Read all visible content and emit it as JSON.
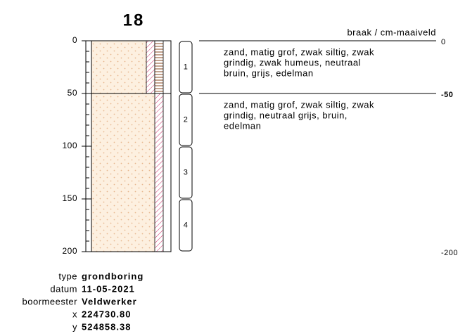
{
  "title": "18",
  "depth_axis": {
    "lim": [
      0,
      200
    ],
    "ticks": [
      0,
      50,
      100,
      150,
      200
    ],
    "minor_step": 10
  },
  "level_header": "braak / cm-maaiveld",
  "level_labels": [
    0,
    -50,
    -200
  ],
  "layers": [
    {
      "top": 0,
      "bottom": 50,
      "description": [
        "zand, matig grof, zwak siltig, zwak",
        "grindig, zwak humeus, neutraal",
        "bruin, grijs, edelman"
      ]
    },
    {
      "top": 50,
      "bottom": 200,
      "description": [
        "zand, matig grof, zwak siltig, zwak",
        "grindig, neutraal grijs, bruin,",
        "edelman"
      ]
    }
  ],
  "samples": [
    {
      "label": "1",
      "top": 0,
      "bottom": 50
    },
    {
      "label": "2",
      "top": 50,
      "bottom": 100
    },
    {
      "label": "3",
      "top": 100,
      "bottom": 150
    },
    {
      "label": "4",
      "top": 150,
      "bottom": 200
    }
  ],
  "meta": [
    {
      "key": "type",
      "value": "grondboring"
    },
    {
      "key": "datum",
      "value": "11-05-2021"
    },
    {
      "key": "boormeester",
      "value": "Veldwerker"
    },
    {
      "key": "x",
      "value": "224730.80"
    },
    {
      "key": "y",
      "value": "524858.38"
    }
  ]
}
